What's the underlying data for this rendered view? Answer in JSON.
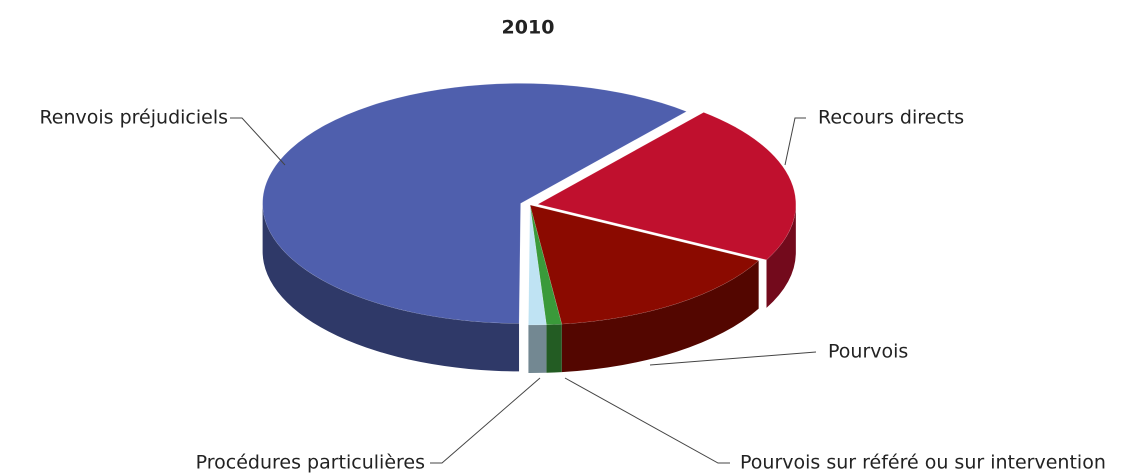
{
  "chart_data": {
    "type": "pie",
    "title": "2010",
    "categories": [
      "Recours directs",
      "Pourvois",
      "Pourvois sur référé ou sur intervention",
      "Procédures particulières",
      "Renvois préjudiciels"
    ],
    "values": [
      136,
      97,
      6,
      7,
      385
    ],
    "colors": [
      "#c0102e",
      "#8b0a00",
      "#3a9a3a",
      "#bfe3f3",
      "#4f5fad"
    ]
  }
}
